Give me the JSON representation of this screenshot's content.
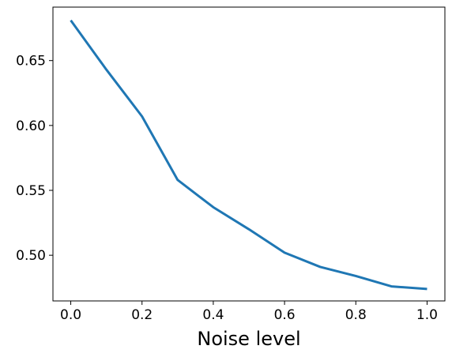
{
  "chart_data": {
    "type": "line",
    "title": "",
    "xlabel": "Noise level",
    "ylabel": "",
    "x": [
      0.0,
      0.1,
      0.2,
      0.3,
      0.4,
      0.5,
      0.6,
      0.7,
      0.8,
      0.9,
      1.0
    ],
    "series": [
      {
        "values": [
          0.681,
          0.643,
          0.607,
          0.558,
          0.537,
          0.52,
          0.502,
          0.491,
          0.484,
          0.476,
          0.474
        ],
        "color": "#1f77b4"
      }
    ],
    "xlim": [
      -0.05,
      1.05
    ],
    "ylim": [
      0.4648,
      0.6912
    ],
    "xticks": [
      0.0,
      0.2,
      0.4,
      0.6,
      0.8,
      1.0
    ],
    "xtick_labels": [
      "0.0",
      "0.2",
      "0.4",
      "0.6",
      "0.8",
      "1.0"
    ],
    "yticks": [
      0.5,
      0.55,
      0.6,
      0.65
    ],
    "ytick_labels": [
      "0.50",
      "0.55",
      "0.60",
      "0.65"
    ],
    "grid": false,
    "legend": "none"
  }
}
